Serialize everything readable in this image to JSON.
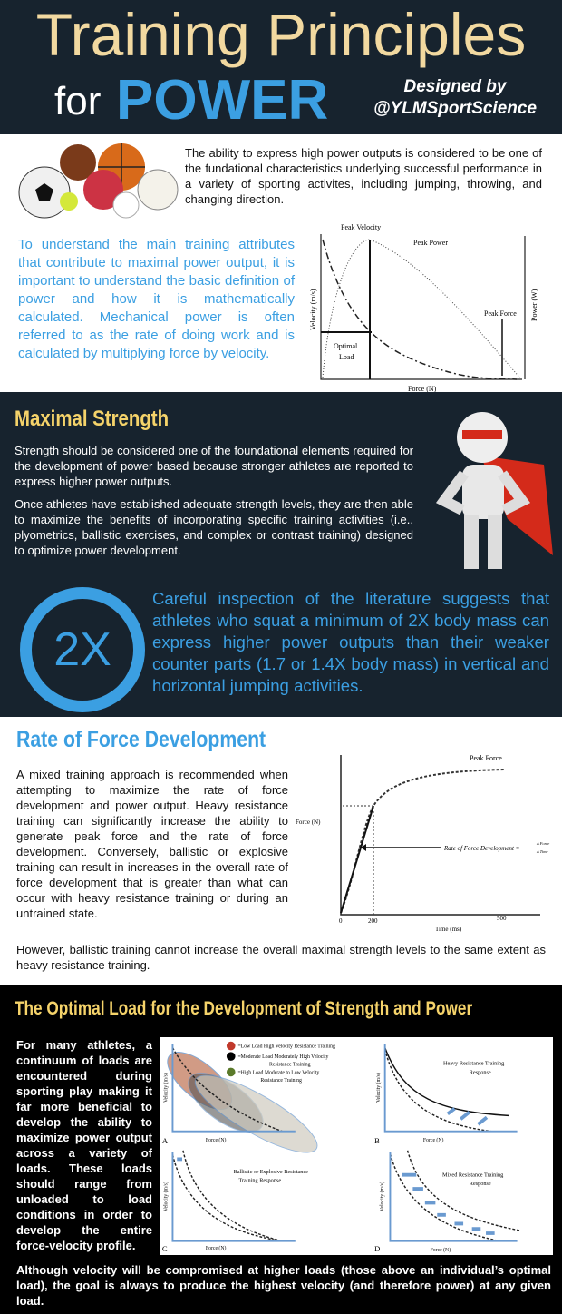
{
  "header": {
    "title": "Training Principles",
    "for": "for",
    "power": "POWER",
    "credit_line1": "Designed by",
    "credit_line2": "@YLMSportScience"
  },
  "intro": {
    "text": "The ability to express high power outputs is considered to be one of the fundational characteristics underlying successful performance in a variety of sporting activites, including jumping, throwing, and changing direction.",
    "blue_text": "To understand the main training attributes that contribute to maximal power output, it is important to understand the basic definition of power and how it is mathematically calculated. Mechanical power is often referred to as the rate of doing work and is calculated by multiplying force by velocity.",
    "chart": {
      "peak_velocity": "Peak Velocity",
      "peak_power": "Peak Power",
      "peak_force": "Peak Force",
      "optimal_load": [
        "Optimal",
        "Load"
      ],
      "xlabel": "Force (N)",
      "ylabel": "Velocity (m/s)",
      "y2label": "Power (W)"
    }
  },
  "strength": {
    "heading": "Maximal Strength",
    "p1": "Strength should be considered one of the foundational elements required for the development of power based because stronger athletes are reported to express higher power outputs.",
    "p2": "Once athletes have established adequate strength levels, they are then able to maximize the benefits of incorporating specific training activities (i.e., plyometrics, ballistic exercises, and complex or contrast training) designed to optimize power development.",
    "badge": "2X",
    "big": "Careful inspection of the literature suggests that athletes who squat a minimum of 2X body mass can express higher power outputs than their weaker counter parts (1.7 or 1.4X body mass) in vertical and horizontal jumping activities."
  },
  "rfd": {
    "heading": "Rate of Force Development",
    "p1": "A mixed training approach is recommended when attempting to maximize the rate of force development and power output. Heavy resistance training can significantly increase the ability to generate peak force and the rate of force development. Conversely, ballistic or explosive training can result in increases in the overall rate of force development that is greater than what can occur with heavy resistance training or during an untrained state.",
    "p2": "However, ballistic training cannot increase the overall maximal strength levels to the same extent as heavy resistance training.",
    "chart": {
      "peak_force": "Peak Force",
      "ylabel": "Force (N)",
      "xlabel": "Time (ms)",
      "ticks": [
        "0",
        "200",
        "500"
      ],
      "formula": "Rate of Force Development =",
      "num": "Δ Force",
      "den": "Δ Time"
    }
  },
  "load": {
    "heading": "The Optimal Load for the Development of Strength and Power",
    "p1": "For many athletes, a continuum of loads are encountered during sporting play making it far more beneficial to develop the ability to maximize power output across a variety of loads. These loads should range from unloaded to load conditions in order to develop the entire force-velocity profile.",
    "p2": "Although velocity will be compromised at higher loads (those above an individual’s optimal load), the goal is always to produce the highest velocity (and therefore power) at any given load.",
    "legend": [
      "=Low Load High Velocity Resistance Training",
      "=Moderate Load Moderately High Velocity",
      "Resistance Training",
      "=High Load Moderate to Low Velocity",
      "Resistance Training"
    ],
    "legend_colors": [
      "#c0392b",
      "#000000",
      "#5a7a2a"
    ],
    "panels": {
      "a": "A",
      "b": "B",
      "c": "C",
      "d": "D",
      "xlabel": "Force (N)",
      "ylabel": "Velocity (m/s)",
      "b_title": [
        "Heavy Resistance Training",
        "Response"
      ],
      "c_title": [
        "Ballistic or Explosive Resistance",
        "Training Response"
      ],
      "d_title": [
        "Mixed Resistance Training",
        "Response"
      ]
    }
  }
}
